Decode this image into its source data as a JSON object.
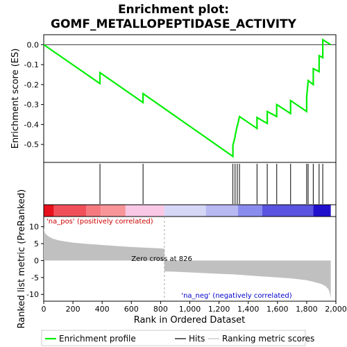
{
  "chart_data": {
    "type": "line",
    "title_line1": "Enrichment plot:",
    "title_line2": "GOMF_METALLOPEPTIDASE_ACTIVITY",
    "es_panel": {
      "ylabel": "Enrichment score (ES)",
      "ylim": [
        -0.59,
        0.05
      ],
      "yticks": [
        0.0,
        -0.1,
        -0.2,
        -0.3,
        -0.4,
        -0.5
      ],
      "ytick_labels": [
        "0.0",
        "-0.1",
        "-0.2",
        "-0.3",
        "-0.4",
        "-0.5"
      ],
      "zero_line": true,
      "line_color": "#00ee00",
      "x": [
        0,
        385,
        385,
        680,
        680,
        1295,
        1295,
        1310,
        1310,
        1325,
        1325,
        1340,
        1340,
        1460,
        1460,
        1530,
        1530,
        1595,
        1595,
        1690,
        1690,
        1800,
        1800,
        1810,
        1810,
        1845,
        1845,
        1885,
        1885,
        1910,
        1910,
        1965
      ],
      "y": [
        0.0,
        -0.195,
        -0.14,
        -0.29,
        -0.245,
        -0.56,
        -0.505,
        -0.46,
        -0.455,
        -0.405,
        -0.41,
        -0.36,
        -0.36,
        -0.42,
        -0.365,
        -0.395,
        -0.335,
        -0.36,
        -0.3,
        -0.345,
        -0.28,
        -0.335,
        -0.26,
        -0.185,
        -0.18,
        -0.2,
        -0.12,
        -0.135,
        -0.055,
        -0.065,
        0.025,
        0.0
      ]
    },
    "hits_panel": {
      "hits": [
        385,
        680,
        1295,
        1310,
        1325,
        1340,
        1460,
        1530,
        1595,
        1690,
        1800,
        1810,
        1845,
        1885,
        1910
      ]
    },
    "heatmap_bar": {
      "segments": [
        {
          "from": 0,
          "to": 70,
          "color": "#e8101c"
        },
        {
          "from": 70,
          "to": 290,
          "color": "#f0505a"
        },
        {
          "from": 290,
          "to": 390,
          "color": "#f47a80"
        },
        {
          "from": 390,
          "to": 560,
          "color": "#f79598"
        },
        {
          "from": 560,
          "to": 826,
          "color": "#f8c8e6"
        },
        {
          "from": 826,
          "to": 1110,
          "color": "#d6d6f7"
        },
        {
          "from": 1110,
          "to": 1330,
          "color": "#b8b8f2"
        },
        {
          "from": 1330,
          "to": 1495,
          "color": "#8a8ced"
        },
        {
          "from": 1495,
          "to": 1845,
          "color": "#5a54e0"
        },
        {
          "from": 1845,
          "to": 1965,
          "color": "#2010cc"
        }
      ]
    },
    "metric_panel": {
      "ylabel": "Ranked list metric (PreRanked)",
      "ylim": [
        -12,
        13
      ],
      "yticks": [
        10,
        5,
        0,
        -5,
        -10
      ],
      "ytick_labels": [
        "10",
        "5",
        "0",
        "-5",
        "-10"
      ],
      "fill_color": "#c0c0c0",
      "x": [
        0,
        10,
        30,
        60,
        100,
        150,
        200,
        300,
        400,
        500,
        600,
        700,
        800,
        826,
        826,
        900,
        1000,
        1100,
        1200,
        1300,
        1400,
        1500,
        1600,
        1700,
        1800,
        1850,
        1900,
        1930,
        1950,
        1960,
        1965
      ],
      "y": [
        9.5,
        8.0,
        7.2,
        6.5,
        6.0,
        5.6,
        5.3,
        4.9,
        4.6,
        4.3,
        4.0,
        3.8,
        3.6,
        3.5,
        -3.2,
        -3.3,
        -3.5,
        -3.7,
        -3.9,
        -4.1,
        -4.4,
        -4.7,
        -5.0,
        -5.3,
        -5.8,
        -6.3,
        -6.9,
        -7.6,
        -8.5,
        -10.0,
        -11.0
      ],
      "pos_label": "'na_pos' (positively correlated)",
      "neg_label": "'na_neg' (negatively correlated)",
      "zero_cross_label": "Zero cross at 826",
      "zero_cross": 826,
      "pos_color": "#cc0000",
      "neg_color": "#0000cc"
    },
    "xaxis": {
      "xlabel": "Rank in Ordered Dataset",
      "xlim": [
        0,
        2000
      ],
      "xticks": [
        0,
        200,
        400,
        600,
        800,
        1000,
        1200,
        1400,
        1600,
        1800,
        2000
      ],
      "xtick_labels": [
        "0",
        "200",
        "400",
        "600",
        "800",
        "1,000",
        "1,200",
        "1,400",
        "1,600",
        "1,800",
        "2,000"
      ],
      "n_genes": 1965
    },
    "legend": {
      "entries": [
        "Enrichment profile",
        "Hits",
        "Ranking metric scores"
      ],
      "colors": [
        "#00ee00",
        "#000000",
        "#c0c0c0"
      ]
    }
  }
}
